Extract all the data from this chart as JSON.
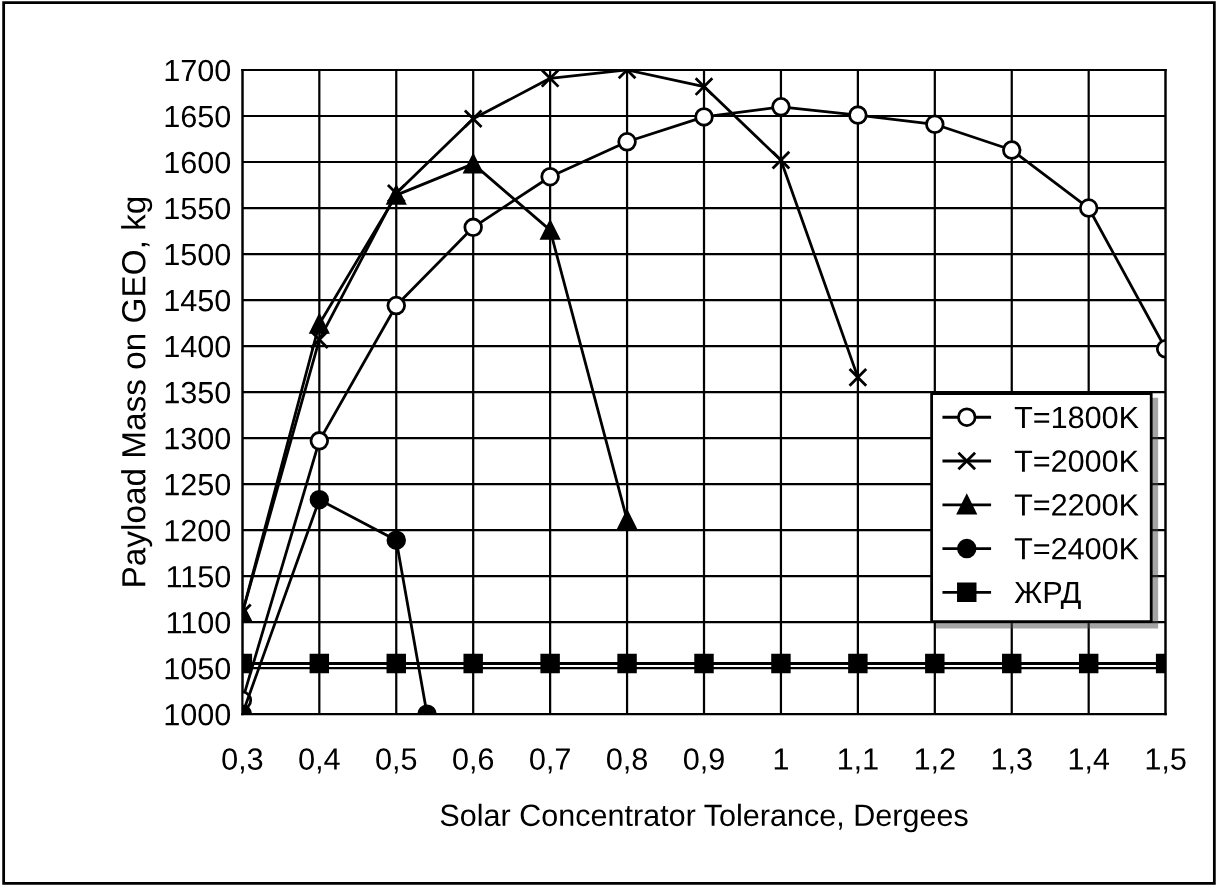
{
  "chart_data": {
    "type": "line",
    "xlabel": "Solar Concentrator Tolerance, Dergees",
    "ylabel": "Payload Mass on GEO, kg",
    "xlim": [
      0.3,
      1.5
    ],
    "xticks": [
      {
        "value": 0.3,
        "label": "0,3"
      },
      {
        "value": 0.4,
        "label": "0,4"
      },
      {
        "value": 0.5,
        "label": "0,5"
      },
      {
        "value": 0.6,
        "label": "0,6"
      },
      {
        "value": 0.7,
        "label": "0,7"
      },
      {
        "value": 0.8,
        "label": "0,8"
      },
      {
        "value": 0.9,
        "label": "0,9"
      },
      {
        "value": 1,
        "label": "1"
      },
      {
        "value": 1.1,
        "label": "1,1"
      },
      {
        "value": 1.2,
        "label": "1,2"
      },
      {
        "value": 1.3,
        "label": "1,3"
      },
      {
        "value": 1.4,
        "label": "1,4"
      },
      {
        "value": 1.5,
        "label": "1,5"
      }
    ],
    "ylim": [
      1000,
      1700
    ],
    "yticks": [
      1000,
      1050,
      1100,
      1150,
      1200,
      1250,
      1300,
      1350,
      1400,
      1450,
      1500,
      1550,
      1600,
      1650,
      1700
    ],
    "grid": true,
    "legend": "right",
    "series": [
      {
        "name": "T=1800K",
        "color": "#000000",
        "marker": "circle",
        "x": [
          0.3,
          0.4,
          0.5,
          0.6,
          0.7,
          0.8,
          0.9,
          1.0,
          1.1,
          1.2,
          1.3,
          1.4,
          1.5
        ],
        "values": [
          1015,
          1297,
          1444,
          1529,
          1584,
          1622,
          1649,
          1660,
          1651,
          1641,
          1613,
          1550,
          1397
        ]
      },
      {
        "name": "T=2000K",
        "color": "#000000",
        "marker": "cross",
        "x": [
          0.3,
          0.4,
          0.5,
          0.6,
          0.7,
          0.8,
          0.9,
          1.0,
          1.1
        ],
        "values": [
          1110,
          1407,
          1566,
          1647,
          1691,
          1700,
          1682,
          1602,
          1366
        ]
      },
      {
        "name": "T=2200K",
        "color": "#000000",
        "marker": "triangle",
        "x": [
          0.3,
          0.4,
          0.5,
          0.6,
          0.7,
          0.8
        ],
        "values": [
          1110,
          1424,
          1564,
          1598,
          1526,
          1211
        ]
      },
      {
        "name": "T=2400K",
        "color": "#000000",
        "marker": "circle_filled",
        "x": [
          0.3,
          0.4,
          0.5,
          0.54
        ],
        "values": [
          1000,
          1233,
          1189,
          1000
        ]
      },
      {
        "name": "ЖРД",
        "color": "#000000",
        "marker": "square",
        "x": [
          0.3,
          0.4,
          0.5,
          0.6,
          0.7,
          0.8,
          0.9,
          1.0,
          1.1,
          1.2,
          1.3,
          1.4,
          1.5
        ],
        "values": [
          1055,
          1055,
          1055,
          1055,
          1055,
          1055,
          1055,
          1055,
          1055,
          1055,
          1055,
          1055,
          1055
        ]
      }
    ]
  }
}
